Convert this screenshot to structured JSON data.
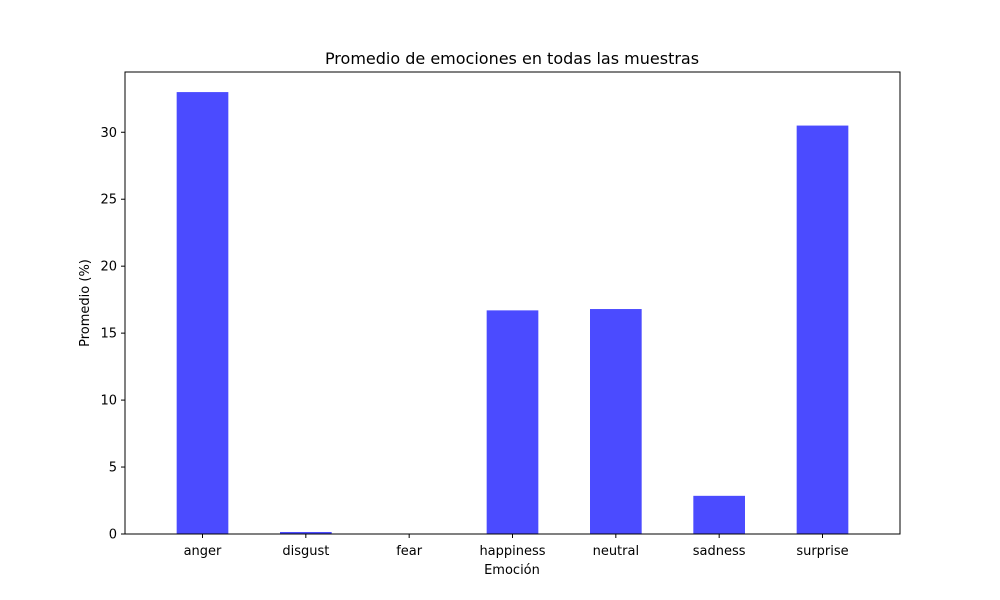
{
  "chart_data": {
    "type": "bar",
    "title": "Promedio de emociones en todas las muestras",
    "xlabel": "Emoción",
    "ylabel": "Promedio (%)",
    "categories": [
      "anger",
      "disgust",
      "fear",
      "happiness",
      "neutral",
      "sadness",
      "surprise"
    ],
    "values": [
      33.0,
      0.15,
      0.0,
      16.7,
      16.8,
      2.85,
      30.5
    ],
    "ylim": [
      0,
      34.5
    ],
    "yticks": [
      0,
      5,
      10,
      15,
      20,
      25,
      30
    ],
    "grid": false,
    "bar_color": "#4b4bff"
  }
}
